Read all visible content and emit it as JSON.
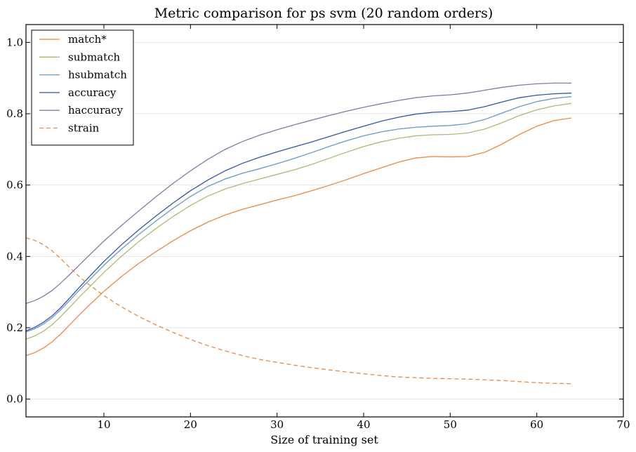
{
  "chart_data": {
    "type": "line",
    "title": "Metric comparison for ps svm (20 random orders)",
    "xlabel": "Size of training set",
    "ylabel": "",
    "xlim": [
      1,
      70
    ],
    "ylim": [
      -0.05,
      1.05
    ],
    "xticks": [
      10,
      20,
      30,
      40,
      50,
      60,
      70
    ],
    "yticks": [
      0.0,
      0.2,
      0.4,
      0.6,
      0.8,
      1.0
    ],
    "xtick_labels": [
      "10",
      "20",
      "30",
      "40",
      "50",
      "60",
      "70"
    ],
    "ytick_labels": [
      "0.0",
      "0.2",
      "0.4",
      "0.6",
      "0.8",
      "1.0"
    ],
    "grid": "horizontal",
    "legend_position": "upper-left",
    "x": [
      1,
      2,
      3,
      4,
      5,
      6,
      7,
      8,
      10,
      12,
      14,
      16,
      18,
      20,
      22,
      24,
      26,
      28,
      30,
      32,
      34,
      36,
      38,
      40,
      42,
      44,
      46,
      48,
      50,
      52,
      54,
      56,
      58,
      60,
      62,
      64
    ],
    "series": [
      {
        "name": "match*",
        "color": "#ee8844",
        "dash": "solid",
        "values": [
          0.122,
          0.13,
          0.143,
          0.16,
          0.182,
          0.207,
          0.232,
          0.256,
          0.302,
          0.343,
          0.38,
          0.413,
          0.444,
          0.472,
          0.496,
          0.516,
          0.532,
          0.545,
          0.558,
          0.57,
          0.584,
          0.599,
          0.615,
          0.632,
          0.648,
          0.664,
          0.676,
          0.68,
          0.679,
          0.68,
          0.692,
          0.715,
          0.742,
          0.765,
          0.781,
          0.788
        ]
      },
      {
        "name": "submatch",
        "color": "#aabb77",
        "dash": "solid",
        "values": [
          0.168,
          0.177,
          0.19,
          0.208,
          0.231,
          0.256,
          0.282,
          0.306,
          0.355,
          0.4,
          0.441,
          0.478,
          0.512,
          0.543,
          0.569,
          0.589,
          0.604,
          0.617,
          0.63,
          0.643,
          0.658,
          0.675,
          0.692,
          0.708,
          0.721,
          0.731,
          0.738,
          0.741,
          0.742,
          0.746,
          0.757,
          0.775,
          0.795,
          0.811,
          0.822,
          0.829
        ]
      },
      {
        "name": "hsubmatch",
        "color": "#6699cc",
        "dash": "solid",
        "values": [
          0.188,
          0.197,
          0.21,
          0.228,
          0.25,
          0.275,
          0.301,
          0.326,
          0.375,
          0.42,
          0.461,
          0.499,
          0.535,
          0.568,
          0.596,
          0.617,
          0.633,
          0.646,
          0.66,
          0.675,
          0.691,
          0.708,
          0.724,
          0.738,
          0.749,
          0.757,
          0.762,
          0.765,
          0.767,
          0.772,
          0.784,
          0.802,
          0.82,
          0.834,
          0.843,
          0.848
        ]
      },
      {
        "name": "accuracy",
        "color": "#3355aa",
        "dash": "solid",
        "values": [
          0.191,
          0.201,
          0.215,
          0.233,
          0.256,
          0.282,
          0.309,
          0.335,
          0.386,
          0.432,
          0.474,
          0.513,
          0.55,
          0.584,
          0.614,
          0.64,
          0.661,
          0.678,
          0.693,
          0.707,
          0.721,
          0.736,
          0.751,
          0.765,
          0.779,
          0.79,
          0.799,
          0.804,
          0.806,
          0.81,
          0.82,
          0.833,
          0.845,
          0.852,
          0.856,
          0.858
        ]
      },
      {
        "name": "haccuracy",
        "color": "#8877aa",
        "dash": "solid",
        "values": [
          0.268,
          0.276,
          0.288,
          0.304,
          0.325,
          0.348,
          0.372,
          0.396,
          0.443,
          0.486,
          0.527,
          0.567,
          0.605,
          0.64,
          0.672,
          0.7,
          0.722,
          0.74,
          0.755,
          0.769,
          0.782,
          0.795,
          0.807,
          0.818,
          0.828,
          0.837,
          0.845,
          0.85,
          0.853,
          0.858,
          0.866,
          0.874,
          0.88,
          0.884,
          0.886,
          0.886
        ]
      },
      {
        "name": "strain",
        "color": "#ee8844",
        "dash": "dashed",
        "values": [
          0.452,
          0.445,
          0.433,
          0.416,
          0.394,
          0.37,
          0.347,
          0.326,
          0.29,
          0.259,
          0.232,
          0.208,
          0.187,
          0.167,
          0.15,
          0.135,
          0.122,
          0.111,
          0.103,
          0.095,
          0.088,
          0.082,
          0.076,
          0.071,
          0.066,
          0.062,
          0.06,
          0.058,
          0.057,
          0.056,
          0.054,
          0.052,
          0.049,
          0.046,
          0.044,
          0.043
        ]
      }
    ]
  }
}
